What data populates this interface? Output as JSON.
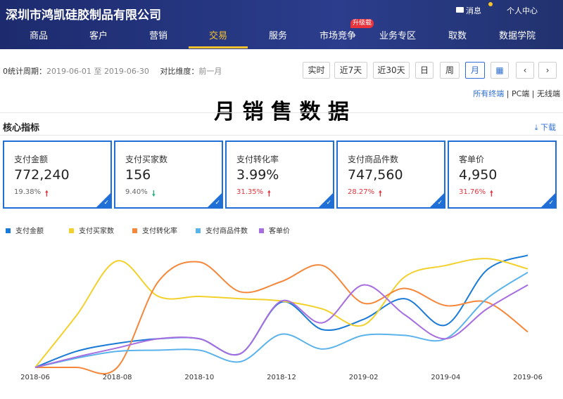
{
  "header": {
    "company": "深圳市鸿凯硅胶制品有限公司",
    "messages": "消息",
    "user_center": "个人中心"
  },
  "nav": {
    "items": [
      "商品",
      "客户",
      "营销",
      "交易",
      "服务",
      "市场竞争",
      "业务专区",
      "取数",
      "数据学院"
    ],
    "active": 3,
    "badge_item": 5,
    "badge": "升级载"
  },
  "filter": {
    "period_label": "0统计周期：",
    "start": "2019-06-01",
    "to": "至",
    "end": "2019-06-30",
    "compare_label": "对比维度：",
    "compare": "前一月",
    "buttons": [
      "实时",
      "近7天",
      "近30天",
      "日",
      "周",
      "月"
    ],
    "active_button": 5,
    "terminals": [
      "所有终端",
      "PC端",
      "无线端"
    ],
    "separator": "|"
  },
  "page_title": "月 销 售 数 据",
  "section": {
    "title": "核心指标",
    "download": "下载"
  },
  "metrics": [
    {
      "label": "支付金额",
      "value": "772,240",
      "change": "19.38%",
      "trend": "up"
    },
    {
      "label": "支付买家数",
      "value": "156",
      "change": "9.40%",
      "trend": "down"
    },
    {
      "label": "支付转化率",
      "value": "3.99%",
      "change": "31.35%",
      "trend": "up"
    },
    {
      "label": "支付商品件数",
      "value": "747,560",
      "change": "28.27%",
      "trend": "up"
    },
    {
      "label": "客单价",
      "value": "4,950",
      "change": "31.76%",
      "trend": "up"
    }
  ],
  "chart_data": {
    "type": "line",
    "smooth": true,
    "categories": [
      "2018-06",
      null,
      "2018-08",
      null,
      "2018-10",
      null,
      "2018-12",
      null,
      "2019-02",
      null,
      "2019-04",
      null,
      "2019-06"
    ],
    "ylim": [
      0,
      100
    ],
    "series": [
      {
        "name": "支付金额",
        "color": "#1a7ad8",
        "values": [
          0,
          14,
          21,
          25,
          25,
          12,
          57,
          33,
          42,
          60,
          37,
          85,
          98
        ]
      },
      {
        "name": "支付买家数",
        "color": "#f2d12c",
        "values": [
          0,
          45,
          93,
          62,
          62,
          60,
          58,
          51,
          37,
          79,
          89,
          95,
          86
        ]
      },
      {
        "name": "支付转化率",
        "color": "#f5873a",
        "values": [
          0,
          0,
          0,
          75,
          92,
          66,
          75,
          89,
          56,
          69,
          54,
          57,
          31
        ]
      },
      {
        "name": "支付商品件数",
        "color": "#5bb3ec",
        "values": [
          0,
          8,
          14,
          15,
          15,
          5,
          29,
          16,
          28,
          28,
          25,
          60,
          83
        ]
      },
      {
        "name": "客单价",
        "color": "#a66ee0",
        "values": [
          0,
          9,
          17,
          25,
          25,
          12,
          58,
          39,
          72,
          46,
          25,
          51,
          72
        ]
      }
    ]
  }
}
